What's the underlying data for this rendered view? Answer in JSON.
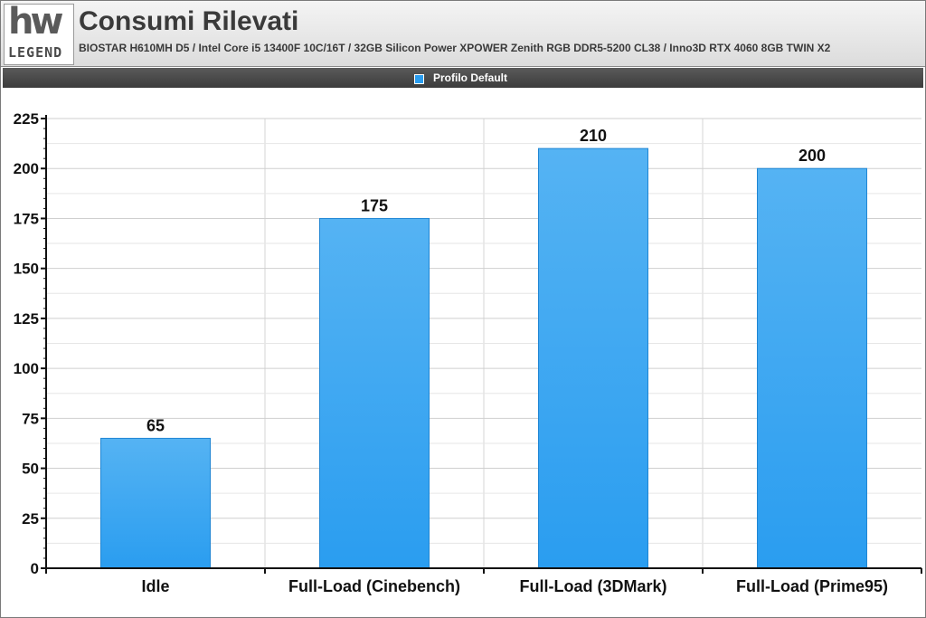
{
  "header": {
    "title": "Consumi Rilevati",
    "subtitle": "BIOSTAR H610MH D5 / Intel Core i5 13400F 10C/16T / 32GB Silicon Power XPOWER Zenith RGB DDR5-5200 CL38 / Inno3D RTX 4060 8GB TWIN X2",
    "logo": {
      "mark": "hw",
      "word": "LEGEND"
    }
  },
  "chart_data": {
    "type": "bar",
    "title": "Consumi Rilevati",
    "categories": [
      "Idle",
      "Full-Load (Cinebench)",
      "Full-Load (3DMark)",
      "Full-Load (Prime95)"
    ],
    "series": [
      {
        "name": "Profilo Default",
        "color": "#2a9df0",
        "values": [
          65,
          175,
          210,
          200
        ]
      }
    ],
    "ylim": [
      0,
      225
    ],
    "yticks": [
      0,
      25,
      50,
      75,
      100,
      125,
      150,
      175,
      200,
      225
    ],
    "grid": true,
    "legend_position": "top-center",
    "xlabel": "",
    "ylabel": ""
  }
}
